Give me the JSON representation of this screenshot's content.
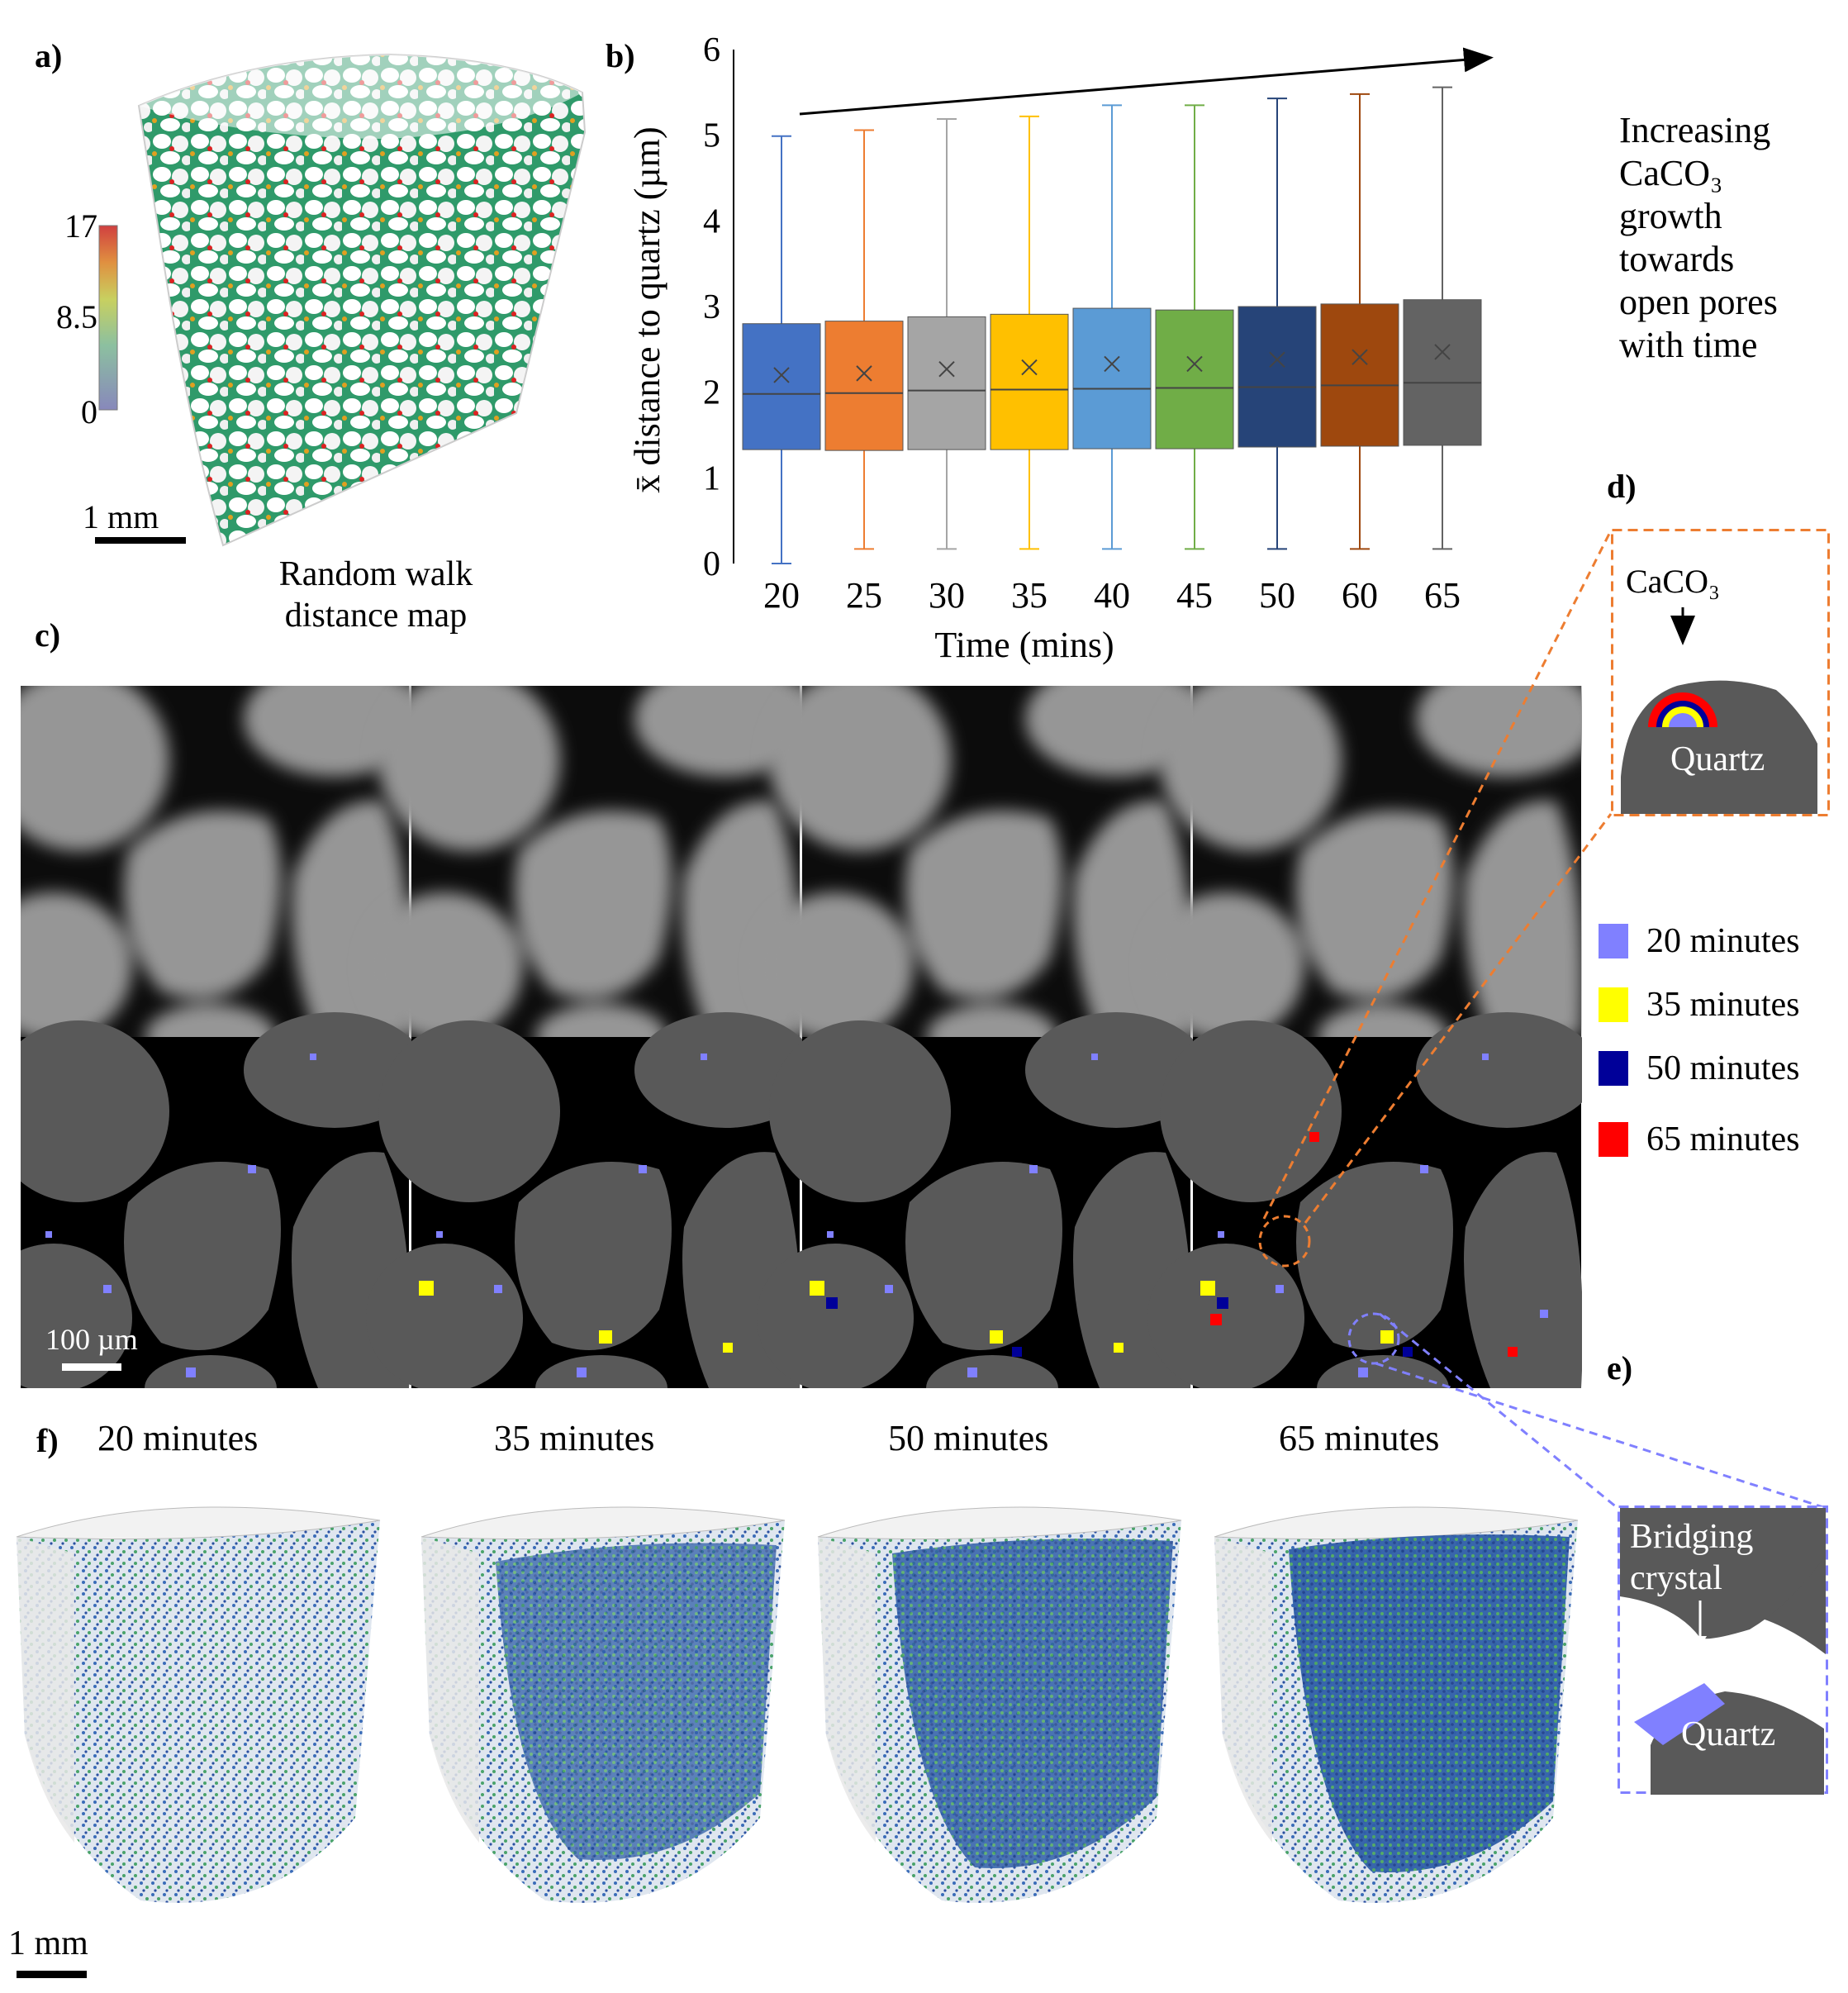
{
  "panel_labels": {
    "a": "a)",
    "b": "b)",
    "c": "c)",
    "d": "d)",
    "e": "e)",
    "f": "f)"
  },
  "panel_a": {
    "colorbar_ticks": [
      "17",
      "8.5",
      "0"
    ],
    "scale_bar": "1 mm",
    "caption_line1": "Random walk",
    "caption_line2": "distance map"
  },
  "panel_b_annotation": {
    "line1": "Increasing",
    "line2": "CaCO₃",
    "line3": "growth",
    "line4": "towards",
    "line5": "open pores",
    "line6": "with time"
  },
  "chart_data": {
    "type": "box",
    "xlabel": "Time (mins)",
    "ylabel": "x̄ distance to quartz (µm)",
    "ylim": [
      0,
      6
    ],
    "yticks": [
      "0",
      "1",
      "2",
      "3",
      "4",
      "5",
      "6"
    ],
    "categories": [
      "20",
      "25",
      "30",
      "35",
      "40",
      "45",
      "50",
      "60",
      "65"
    ],
    "colors": [
      "#4472C4",
      "#ED7D31",
      "#A5A5A5",
      "#FFC000",
      "#5B9BD5",
      "#70AD47",
      "#264478",
      "#9E480E",
      "#636363"
    ],
    "whisker_low": [
      0.0,
      0.17,
      0.17,
      0.17,
      0.17,
      0.17,
      0.17,
      0.17,
      0.17
    ],
    "q1": [
      1.33,
      1.32,
      1.33,
      1.33,
      1.34,
      1.34,
      1.36,
      1.37,
      1.38
    ],
    "median": [
      1.98,
      1.99,
      2.02,
      2.03,
      2.04,
      2.05,
      2.06,
      2.08,
      2.11
    ],
    "mean": [
      2.2,
      2.22,
      2.27,
      2.29,
      2.33,
      2.33,
      2.38,
      2.41,
      2.47
    ],
    "q3": [
      2.8,
      2.83,
      2.88,
      2.91,
      2.98,
      2.96,
      3.0,
      3.03,
      3.08
    ],
    "whisker_high": [
      4.99,
      5.06,
      5.19,
      5.22,
      5.35,
      5.35,
      5.43,
      5.48,
      5.56
    ],
    "trend_arrow": true
  },
  "panel_c": {
    "scale_bar": "100 µm"
  },
  "legend": {
    "items": [
      {
        "label": "20 minutes",
        "color": "#8080ff"
      },
      {
        "label": "35 minutes",
        "color": "#ffff00"
      },
      {
        "label": "50 minutes",
        "color": "#000099"
      },
      {
        "label": "65 minutes",
        "color": "#ff0000"
      }
    ]
  },
  "panel_d": {
    "caco3": "CaCO₃",
    "quartz": "Quartz"
  },
  "panel_e": {
    "bridging1": "Bridging",
    "bridging2": "crystal",
    "quartz": "Quartz"
  },
  "panel_f": {
    "time_labels": [
      "20 minutes",
      "35 minutes",
      "50 minutes",
      "65 minutes"
    ],
    "scale_bar": "1 mm"
  }
}
